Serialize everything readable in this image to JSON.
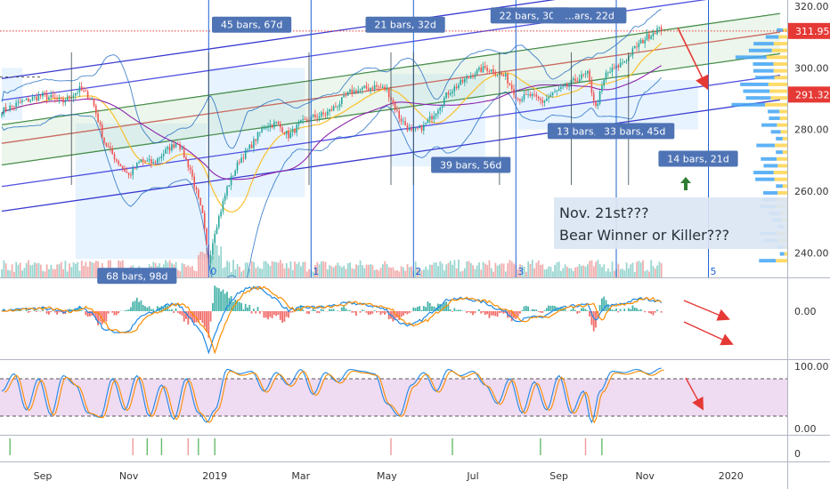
{
  "chart_data": {
    "type": "candlestick",
    "price_axis": {
      "range": [
        232,
        322
      ],
      "ticks": [
        240,
        260,
        280,
        300,
        320
      ],
      "tick_labels": [
        "240.00",
        "260.00",
        "280.00",
        "300.00",
        "320.00"
      ],
      "price_labels": [
        {
          "value": 311.95,
          "text": "311.95",
          "color": "#e53935"
        },
        {
          "value": 291.32,
          "text": "291.32",
          "color": "#e53935"
        }
      ]
    },
    "time_axis": {
      "labels": [
        {
          "text": "Sep",
          "bar": 20
        },
        {
          "text": "Nov",
          "bar": 62
        },
        {
          "text": "2019",
          "bar": 104
        },
        {
          "text": "Mar",
          "bar": 146
        },
        {
          "text": "May",
          "bar": 188
        },
        {
          "text": "Jul",
          "bar": 230
        },
        {
          "text": "Sep",
          "bar": 272
        },
        {
          "text": "Nov",
          "bar": 314
        },
        {
          "text": "2020",
          "bar": 356
        }
      ]
    },
    "price_series": {
      "name": "",
      "keypoints": [
        [
          0,
          286
        ],
        [
          10,
          289
        ],
        [
          20,
          291
        ],
        [
          30,
          289
        ],
        [
          38,
          293
        ],
        [
          44,
          290
        ],
        [
          50,
          276
        ],
        [
          56,
          270
        ],
        [
          62,
          265
        ],
        [
          68,
          270
        ],
        [
          74,
          269
        ],
        [
          80,
          273
        ],
        [
          86,
          276
        ],
        [
          92,
          267
        ],
        [
          98,
          252
        ],
        [
          101,
          237
        ],
        [
          104,
          247
        ],
        [
          110,
          261
        ],
        [
          116,
          270
        ],
        [
          122,
          275
        ],
        [
          128,
          281
        ],
        [
          134,
          282
        ],
        [
          140,
          278
        ],
        [
          146,
          282
        ],
        [
          152,
          284
        ],
        [
          158,
          285
        ],
        [
          164,
          288
        ],
        [
          170,
          292
        ],
        [
          176,
          293
        ],
        [
          182,
          294
        ],
        [
          188,
          293
        ],
        [
          194,
          284
        ],
        [
          200,
          279
        ],
        [
          206,
          281
        ],
        [
          212,
          286
        ],
        [
          218,
          292
        ],
        [
          224,
          295
        ],
        [
          230,
          298
        ],
        [
          236,
          300
        ],
        [
          240,
          299
        ],
        [
          246,
          297
        ],
        [
          252,
          290
        ],
        [
          258,
          291
        ],
        [
          264,
          289
        ],
        [
          270,
          292
        ],
        [
          276,
          294
        ],
        [
          280,
          296
        ],
        [
          286,
          298
        ],
        [
          290,
          287
        ],
        [
          295,
          298
        ],
        [
          300,
          300
        ],
        [
          305,
          303
        ],
        [
          310,
          307
        ],
        [
          315,
          310
        ],
        [
          320,
          312.5
        ],
        [
          322,
          311.95
        ]
      ]
    },
    "volume_series": {
      "name": "",
      "unit": "relative"
    },
    "pitchfork_channels": [
      {
        "color": "#3a3ad0",
        "offset": -22
      },
      {
        "color": "#5050e0",
        "offset": -14
      },
      {
        "color": "#2e7d32",
        "offset": -7
      },
      {
        "color": "#c62828",
        "offset": 0
      },
      {
        "color": "#2e7d32",
        "offset": 6
      },
      {
        "color": "#5050e0",
        "offset": 14
      },
      {
        "color": "#3a3ad0",
        "offset": 21
      }
    ],
    "cycle_lines": [
      {
        "bar": 101,
        "label": "0"
      },
      {
        "bar": 151,
        "label": "1"
      },
      {
        "bar": 201,
        "label": "2"
      },
      {
        "bar": 251,
        "label": "3"
      },
      {
        "bar": 300,
        "label": ""
      },
      {
        "bar": 345,
        "label": "5"
      }
    ],
    "date_range_labels": [
      {
        "text": "45 bars, 67d",
        "bar": 122,
        "price": 314
      },
      {
        "text": "21 bars, 32d",
        "bar": 197,
        "price": 314
      },
      {
        "text": "22 bars, 30d",
        "bar": 258,
        "price": 317
      },
      {
        "text": "...ars, 22d",
        "bar": 287,
        "price": 317
      },
      {
        "text": "68 bars, 98d",
        "bar": 66,
        "price": 232.5
      },
      {
        "text": "39 bars, 56d",
        "bar": 229,
        "price": 268.5
      },
      {
        "text": "13 bars, 1",
        "bar": 283,
        "price": 279.5
      },
      {
        "text": "33 bars, 45d",
        "bar": 309,
        "price": 279.5
      },
      {
        "text": "14 bars, 21d",
        "bar": 340,
        "price": 270.5
      }
    ],
    "annotation": {
      "line1": "Nov. 21st???",
      "line2": "Bear Winner or Killer???"
    },
    "macd": {
      "ticks": [
        0
      ],
      "tick_labels": [
        "0.00"
      ]
    },
    "stochastic": {
      "range": [
        0,
        100
      ],
      "ticks": [
        0,
        100
      ],
      "tick_labels": [
        "0.00",
        "100.00"
      ],
      "band": [
        20,
        80
      ],
      "keypoints": [
        [
          0,
          60
        ],
        [
          6,
          88
        ],
        [
          12,
          30
        ],
        [
          18,
          80
        ],
        [
          24,
          22
        ],
        [
          30,
          85
        ],
        [
          36,
          70
        ],
        [
          42,
          25
        ],
        [
          48,
          18
        ],
        [
          54,
          80
        ],
        [
          60,
          30
        ],
        [
          66,
          85
        ],
        [
          72,
          20
        ],
        [
          78,
          70
        ],
        [
          84,
          15
        ],
        [
          90,
          80
        ],
        [
          96,
          25
        ],
        [
          100,
          10
        ],
        [
          104,
          30
        ],
        [
          110,
          95
        ],
        [
          116,
          88
        ],
        [
          122,
          92
        ],
        [
          128,
          60
        ],
        [
          134,
          90
        ],
        [
          140,
          70
        ],
        [
          146,
          95
        ],
        [
          152,
          55
        ],
        [
          158,
          90
        ],
        [
          164,
          75
        ],
        [
          170,
          95
        ],
        [
          176,
          92
        ],
        [
          182,
          88
        ],
        [
          188,
          40
        ],
        [
          194,
          20
        ],
        [
          200,
          70
        ],
        [
          206,
          90
        ],
        [
          212,
          60
        ],
        [
          218,
          95
        ],
        [
          224,
          85
        ],
        [
          230,
          92
        ],
        [
          236,
          70
        ],
        [
          242,
          40
        ],
        [
          248,
          80
        ],
        [
          254,
          25
        ],
        [
          260,
          75
        ],
        [
          266,
          30
        ],
        [
          272,
          85
        ],
        [
          278,
          25
        ],
        [
          284,
          60
        ],
        [
          288,
          10
        ],
        [
          292,
          60
        ],
        [
          298,
          92
        ],
        [
          304,
          90
        ],
        [
          310,
          95
        ],
        [
          316,
          88
        ],
        [
          322,
          97
        ]
      ]
    },
    "signal_pane": {
      "ticks": [
        0
      ],
      "tick_labels": [
        "0"
      ]
    }
  }
}
